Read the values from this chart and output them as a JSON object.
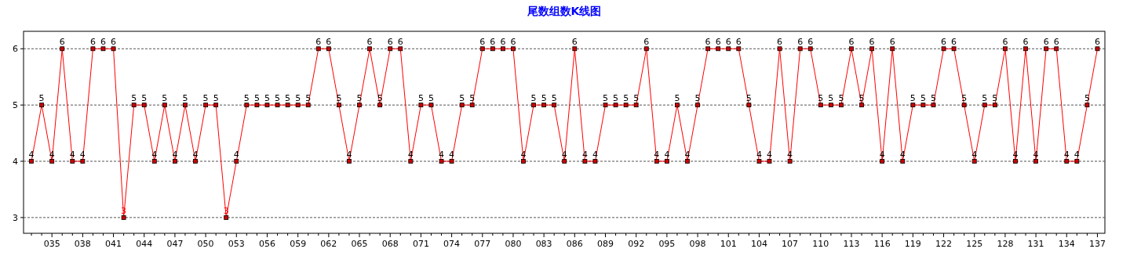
{
  "chart_data": {
    "type": "line",
    "title": "尾数组数K线图",
    "categories": [
      null,
      null,
      "035",
      null,
      null,
      "038",
      null,
      null,
      "041",
      null,
      null,
      "044",
      null,
      null,
      "047",
      null,
      null,
      "050",
      null,
      null,
      "053",
      null,
      null,
      "056",
      null,
      null,
      "059",
      null,
      null,
      "062",
      null,
      null,
      "065",
      null,
      null,
      "068",
      null,
      null,
      "071",
      null,
      null,
      "074",
      null,
      null,
      "077",
      null,
      null,
      "080",
      null,
      null,
      "083",
      null,
      null,
      "086",
      null,
      null,
      "089",
      null,
      null,
      "092",
      null,
      null,
      "095",
      null,
      null,
      "098",
      null,
      null,
      "101",
      null,
      null,
      "104",
      null,
      null,
      "107",
      null,
      null,
      "110",
      null,
      null,
      "113",
      null,
      null,
      "116",
      null,
      null,
      "119",
      null,
      null,
      "122",
      null,
      null,
      "125",
      null,
      null,
      "128",
      null,
      null,
      "131",
      null,
      null,
      "134",
      null,
      null,
      "137"
    ],
    "series": [
      {
        "color": "#ff0000",
        "values": [
          4,
          5,
          4,
          6,
          4,
          4,
          6,
          6,
          6,
          3,
          5,
          5,
          4,
          5,
          4,
          5,
          4,
          5,
          5,
          3,
          4,
          5,
          5,
          5,
          5,
          5,
          5,
          5,
          6,
          6,
          5,
          4,
          5,
          6,
          5,
          6,
          6,
          4,
          5,
          5,
          4,
          4,
          5,
          5,
          6,
          6,
          6,
          6,
          4,
          5,
          5,
          5,
          4,
          6,
          4,
          4,
          5,
          5,
          5,
          5,
          6,
          4,
          4,
          5,
          4,
          5,
          6,
          6,
          6,
          6,
          5,
          4,
          4,
          6,
          4,
          6,
          6,
          5,
          5,
          5,
          6,
          5,
          6,
          4,
          6,
          4,
          5,
          5,
          5,
          6,
          6,
          5,
          4,
          5,
          5,
          6,
          4,
          6,
          4,
          6,
          6,
          4,
          4,
          5,
          6
        ]
      }
    ],
    "ylim": [
      2.72,
      6.31
    ],
    "yticks": [
      3,
      4,
      5,
      6
    ],
    "grid": "y",
    "data_labels": true,
    "marker": "square",
    "line_style": "solid"
  }
}
